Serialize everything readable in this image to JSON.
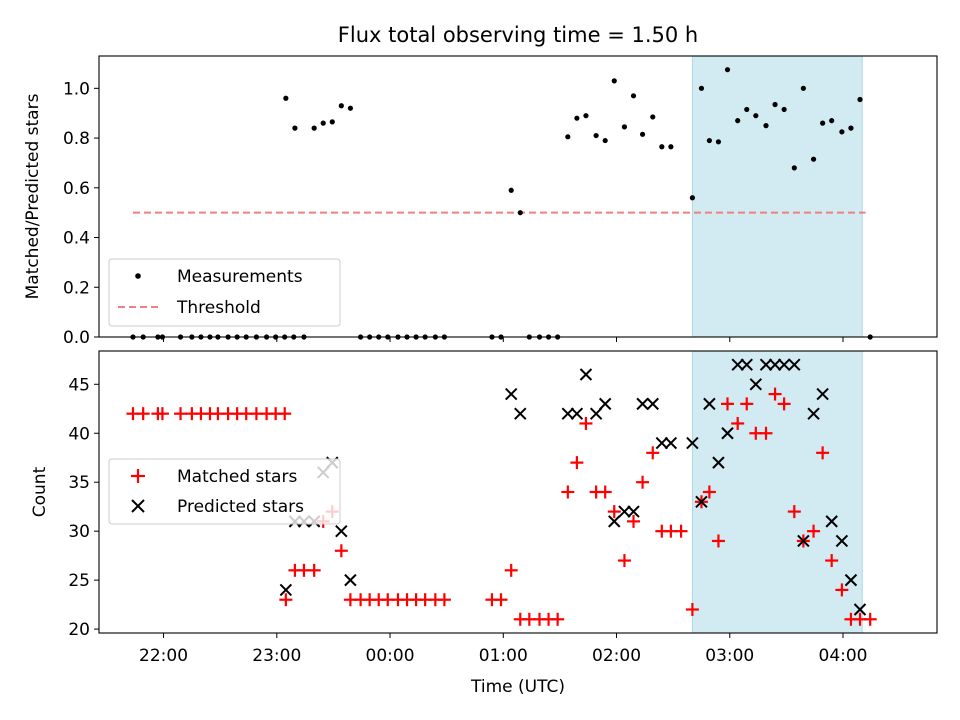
{
  "colors": {
    "measurement": "#000000",
    "threshold": "#f08080",
    "matched": "#ff0000",
    "predicted": "#000000",
    "shade": "#add8e6"
  },
  "chart_data": [
    {
      "type": "scatter",
      "title": "Flux total observing time = 1.50 h",
      "xlabel": "",
      "ylabel": "Matched/Predicted stars",
      "ylim": [
        0,
        1.13
      ],
      "yticks": [
        0.0,
        0.2,
        0.4,
        0.6,
        0.8,
        1.0
      ],
      "ytick_labels": [
        "0.0",
        "0.2",
        "0.4",
        "0.6",
        "0.8",
        "1.0"
      ],
      "x_unit": "hours after 21:00 UTC (times after midnight shown as +24h)",
      "xlim": [
        0.43,
        7.83
      ],
      "shaded_interval": [
        5.67,
        7.17
      ],
      "legend": {
        "position": "lower-left",
        "entries": [
          "Measurements",
          "Threshold"
        ]
      },
      "series": [
        {
          "name": "Measurements",
          "marker": "dot",
          "points": [
            [
              0.73,
              0
            ],
            [
              0.82,
              0
            ],
            [
              0.95,
              0
            ],
            [
              0.99,
              0
            ],
            [
              1.15,
              0
            ],
            [
              1.25,
              0
            ],
            [
              1.33,
              0
            ],
            [
              1.41,
              0
            ],
            [
              1.48,
              0
            ],
            [
              1.57,
              0
            ],
            [
              1.65,
              0
            ],
            [
              1.73,
              0
            ],
            [
              1.82,
              0
            ],
            [
              1.91,
              0
            ],
            [
              1.99,
              0
            ],
            [
              2.07,
              0
            ],
            [
              2.15,
              0
            ],
            [
              2.08,
              0.96
            ],
            [
              2.16,
              0.84
            ],
            [
              2.33,
              0.84
            ],
            [
              2.41,
              0.86
            ],
            [
              2.49,
              0.865
            ],
            [
              2.57,
              0.93
            ],
            [
              2.65,
              0.92
            ],
            [
              2.24,
              0
            ],
            [
              2.74,
              0
            ],
            [
              2.82,
              0
            ],
            [
              2.9,
              0
            ],
            [
              2.98,
              0
            ],
            [
              3.07,
              0
            ],
            [
              3.15,
              0
            ],
            [
              3.23,
              0
            ],
            [
              3.31,
              0
            ],
            [
              3.4,
              0
            ],
            [
              3.48,
              0
            ],
            [
              3.9,
              0
            ],
            [
              3.98,
              0
            ],
            [
              4.07,
              0.59
            ],
            [
              4.15,
              0.5
            ],
            [
              4.23,
              0
            ],
            [
              4.32,
              0
            ],
            [
              4.4,
              0
            ],
            [
              4.48,
              0
            ],
            [
              4.57,
              0.805
            ],
            [
              4.65,
              0.88
            ],
            [
              4.73,
              0.89
            ],
            [
              4.82,
              0.81
            ],
            [
              4.9,
              0.79
            ],
            [
              4.98,
              1.03
            ],
            [
              5.07,
              0.845
            ],
            [
              5.15,
              0.97
            ],
            [
              5.23,
              0.815
            ],
            [
              5.32,
              0.885
            ],
            [
              5.4,
              0.765
            ],
            [
              5.48,
              0.765
            ],
            [
              5.67,
              0.56
            ],
            [
              5.75,
              1.0
            ],
            [
              5.82,
              0.79
            ],
            [
              5.9,
              0.785
            ],
            [
              5.98,
              1.075
            ],
            [
              6.07,
              0.87
            ],
            [
              6.15,
              0.915
            ],
            [
              6.23,
              0.89
            ],
            [
              6.32,
              0.85
            ],
            [
              6.4,
              0.935
            ],
            [
              6.48,
              0.915
            ],
            [
              6.57,
              0.68
            ],
            [
              6.65,
              1.0
            ],
            [
              6.74,
              0.715
            ],
            [
              6.82,
              0.86
            ],
            [
              6.9,
              0.87
            ],
            [
              6.99,
              0.825
            ],
            [
              7.07,
              0.84
            ],
            [
              7.15,
              0.955
            ],
            [
              7.24,
              0
            ]
          ]
        },
        {
          "name": "Threshold",
          "marker": "dashed-line",
          "points": [
            [
              0.73,
              0.5
            ],
            [
              7.2,
              0.5
            ]
          ]
        }
      ]
    },
    {
      "type": "scatter",
      "title": "",
      "xlabel": "Time (UTC)",
      "ylabel": "Count",
      "ylim": [
        19.6,
        48.4
      ],
      "yticks": [
        20,
        25,
        30,
        35,
        40,
        45
      ],
      "ytick_labels": [
        "20",
        "25",
        "30",
        "35",
        "40",
        "45"
      ],
      "xlim": [
        0.43,
        7.83
      ],
      "xticks": [
        1,
        2,
        3,
        4,
        5,
        6,
        7
      ],
      "xtick_labels": [
        "22:00",
        "23:00",
        "00:00",
        "01:00",
        "02:00",
        "03:00",
        "04:00"
      ],
      "shaded_interval": [
        5.67,
        7.17
      ],
      "legend": {
        "position": "center-left",
        "entries": [
          "Matched stars",
          "Predicted stars"
        ]
      },
      "series": [
        {
          "name": "Matched stars",
          "marker": "plus",
          "points": [
            [
              0.73,
              42
            ],
            [
              0.82,
              42
            ],
            [
              0.95,
              42
            ],
            [
              0.99,
              42
            ],
            [
              1.15,
              42
            ],
            [
              1.25,
              42
            ],
            [
              1.33,
              42
            ],
            [
              1.41,
              42
            ],
            [
              1.48,
              42
            ],
            [
              1.57,
              42
            ],
            [
              1.65,
              42
            ],
            [
              1.73,
              42
            ],
            [
              1.82,
              42
            ],
            [
              1.91,
              42
            ],
            [
              1.99,
              42
            ],
            [
              2.07,
              42
            ],
            [
              2.08,
              23
            ],
            [
              2.16,
              26
            ],
            [
              2.24,
              26
            ],
            [
              2.33,
              26
            ],
            [
              2.41,
              31
            ],
            [
              2.49,
              32
            ],
            [
              2.57,
              28
            ],
            [
              2.65,
              23
            ],
            [
              2.74,
              23
            ],
            [
              2.82,
              23
            ],
            [
              2.9,
              23
            ],
            [
              2.98,
              23
            ],
            [
              3.07,
              23
            ],
            [
              3.15,
              23
            ],
            [
              3.23,
              23
            ],
            [
              3.31,
              23
            ],
            [
              3.4,
              23
            ],
            [
              3.48,
              23
            ],
            [
              3.9,
              23
            ],
            [
              3.98,
              23
            ],
            [
              4.07,
              26
            ],
            [
              4.15,
              21
            ],
            [
              4.23,
              21
            ],
            [
              4.32,
              21
            ],
            [
              4.4,
              21
            ],
            [
              4.48,
              21
            ],
            [
              4.57,
              34
            ],
            [
              4.65,
              37
            ],
            [
              4.73,
              41
            ],
            [
              4.82,
              34
            ],
            [
              4.9,
              34
            ],
            [
              4.98,
              32
            ],
            [
              5.07,
              27
            ],
            [
              5.15,
              31
            ],
            [
              5.23,
              35
            ],
            [
              5.32,
              38
            ],
            [
              5.4,
              30
            ],
            [
              5.48,
              30
            ],
            [
              5.57,
              30
            ],
            [
              5.67,
              22
            ],
            [
              5.75,
              33
            ],
            [
              5.82,
              34
            ],
            [
              5.9,
              29
            ],
            [
              5.98,
              43
            ],
            [
              6.07,
              41
            ],
            [
              6.15,
              43
            ],
            [
              6.23,
              40
            ],
            [
              6.32,
              40
            ],
            [
              6.4,
              44
            ],
            [
              6.48,
              43
            ],
            [
              6.57,
              32
            ],
            [
              6.65,
              29
            ],
            [
              6.74,
              30
            ],
            [
              6.82,
              38
            ],
            [
              6.9,
              27
            ],
            [
              6.99,
              24
            ],
            [
              7.07,
              21
            ],
            [
              7.15,
              21
            ],
            [
              7.24,
              21
            ]
          ]
        },
        {
          "name": "Predicted stars",
          "marker": "x",
          "points": [
            [
              2.08,
              24
            ],
            [
              2.16,
              31
            ],
            [
              2.24,
              31
            ],
            [
              2.33,
              31
            ],
            [
              2.41,
              36
            ],
            [
              2.49,
              37
            ],
            [
              2.57,
              30
            ],
            [
              2.65,
              25
            ],
            [
              4.07,
              44
            ],
            [
              4.15,
              42
            ],
            [
              4.57,
              42
            ],
            [
              4.65,
              42
            ],
            [
              4.73,
              46
            ],
            [
              4.82,
              42
            ],
            [
              4.9,
              43
            ],
            [
              4.98,
              31
            ],
            [
              5.07,
              32
            ],
            [
              5.15,
              32
            ],
            [
              5.23,
              43
            ],
            [
              5.32,
              43
            ],
            [
              5.4,
              39
            ],
            [
              5.48,
              39
            ],
            [
              5.67,
              39
            ],
            [
              5.75,
              33
            ],
            [
              5.82,
              43
            ],
            [
              5.9,
              37
            ],
            [
              5.98,
              40
            ],
            [
              6.07,
              47
            ],
            [
              6.15,
              47
            ],
            [
              6.23,
              45
            ],
            [
              6.32,
              47
            ],
            [
              6.4,
              47
            ],
            [
              6.48,
              47
            ],
            [
              6.57,
              47
            ],
            [
              6.65,
              29
            ],
            [
              6.74,
              42
            ],
            [
              6.82,
              44
            ],
            [
              6.9,
              31
            ],
            [
              6.99,
              29
            ],
            [
              7.07,
              25
            ],
            [
              7.15,
              22
            ]
          ]
        }
      ]
    }
  ]
}
